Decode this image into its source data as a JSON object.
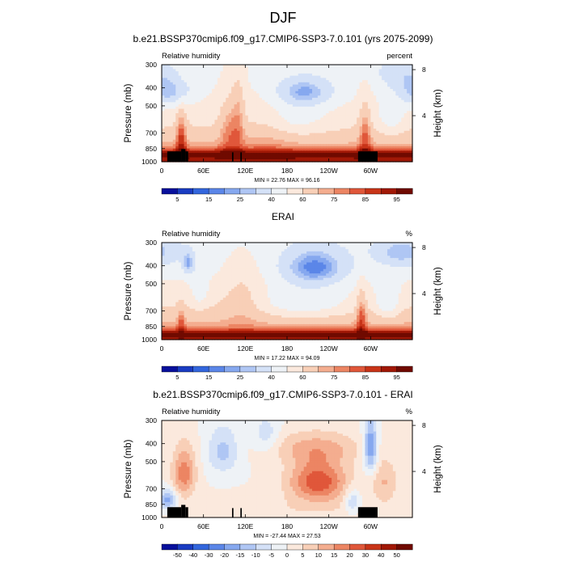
{
  "figure": {
    "title": "DJF"
  },
  "chart_data": [
    {
      "type": "heatmap",
      "title": "b.e21.BSSP370cmip6.f09_g17.CMIP6-SSP3-7.0.101 (yrs 2075-2099)",
      "left_label": "Relative humidity",
      "right_label": "percent",
      "ylabel": "Pressure (mb)",
      "ylabel_right": "Height (km)",
      "x_ticks": [
        "0",
        "60E",
        "120E",
        "180",
        "120W",
        "60W"
      ],
      "x_tick_lon": [
        0,
        60,
        120,
        180,
        240,
        300
      ],
      "xlim": [
        0,
        360
      ],
      "y_ticks": [
        300,
        400,
        500,
        700,
        850,
        1000
      ],
      "ylim": [
        300,
        1000
      ],
      "y_scale": "log",
      "height_ticks": [
        8,
        4
      ],
      "stats": "MIN = 22.76  MAX = 96.16",
      "colorbar": {
        "labels": [
          "5",
          "15",
          "25",
          "40",
          "60",
          "75",
          "85",
          "95"
        ],
        "levels": [
          5,
          10,
          15,
          20,
          25,
          30,
          40,
          50,
          60,
          70,
          75,
          80,
          85,
          90,
          95
        ],
        "colors": [
          "#08109c",
          "#1a3cc2",
          "#3366dd",
          "#5b86e8",
          "#86a8ef",
          "#afc6f4",
          "#d4e1f7",
          "#eef2f6",
          "#fbe9dd",
          "#f8cfb7",
          "#f4ad8f",
          "#ec8563",
          "#e0573a",
          "#c83418",
          "#a11806",
          "#700a00"
        ]
      },
      "field": "model"
    },
    {
      "type": "heatmap",
      "title": "ERAI",
      "left_label": "Relative humidity",
      "right_label": "%",
      "ylabel": "Pressure (mb)",
      "ylabel_right": "Height (km)",
      "x_ticks": [
        "0",
        "60E",
        "120E",
        "180",
        "120W",
        "60W"
      ],
      "x_tick_lon": [
        0,
        60,
        120,
        180,
        240,
        300
      ],
      "xlim": [
        0,
        360
      ],
      "y_ticks": [
        300,
        400,
        500,
        700,
        850,
        1000
      ],
      "ylim": [
        300,
        1000
      ],
      "y_scale": "log",
      "height_ticks": [
        8,
        4
      ],
      "stats": "MIN = 17.22  MAX = 94.09",
      "colorbar": {
        "labels": [
          "5",
          "15",
          "25",
          "40",
          "60",
          "75",
          "85",
          "95"
        ],
        "levels": [
          5,
          10,
          15,
          20,
          25,
          30,
          40,
          50,
          60,
          70,
          75,
          80,
          85,
          90,
          95
        ],
        "colors": [
          "#08109c",
          "#1a3cc2",
          "#3366dd",
          "#5b86e8",
          "#86a8ef",
          "#afc6f4",
          "#d4e1f7",
          "#eef2f6",
          "#fbe9dd",
          "#f8cfb7",
          "#f4ad8f",
          "#ec8563",
          "#e0573a",
          "#c83418",
          "#a11806",
          "#700a00"
        ]
      },
      "field": "obs"
    },
    {
      "type": "heatmap",
      "title": "b.e21.BSSP370cmip6.f09_g17.CMIP6-SSP3-7.0.101 - ERAI",
      "left_label": "Relative humidity",
      "right_label": "%",
      "ylabel": "Pressure (mb)",
      "ylabel_right": "Height (km)",
      "x_ticks": [
        "0",
        "60E",
        "120E",
        "180",
        "120W",
        "60W"
      ],
      "x_tick_lon": [
        0,
        60,
        120,
        180,
        240,
        300
      ],
      "xlim": [
        0,
        360
      ],
      "y_ticks": [
        300,
        400,
        500,
        700,
        850,
        1000
      ],
      "ylim": [
        300,
        1000
      ],
      "y_scale": "log",
      "height_ticks": [
        8,
        4
      ],
      "stats": "MIN = -27.44  MAX = 27.53",
      "colorbar": {
        "labels": [
          "-50",
          "-40",
          "-30",
          "-20",
          "-15",
          "-10",
          "-5",
          "0",
          "5",
          "10",
          "15",
          "20",
          "30",
          "40",
          "50"
        ],
        "levels": [
          -50,
          -40,
          -30,
          -20,
          -15,
          -10,
          -5,
          0,
          5,
          10,
          15,
          20,
          30,
          40,
          50
        ],
        "colors": [
          "#08109c",
          "#1a3cc2",
          "#3366dd",
          "#5b86e8",
          "#86a8ef",
          "#afc6f4",
          "#d4e1f7",
          "#eef2f6",
          "#fbe9dd",
          "#f8cfb7",
          "#f4ad8f",
          "#ec8563",
          "#e0573a",
          "#c83418",
          "#a11806",
          "#700a00"
        ]
      },
      "field": "diff"
    }
  ]
}
